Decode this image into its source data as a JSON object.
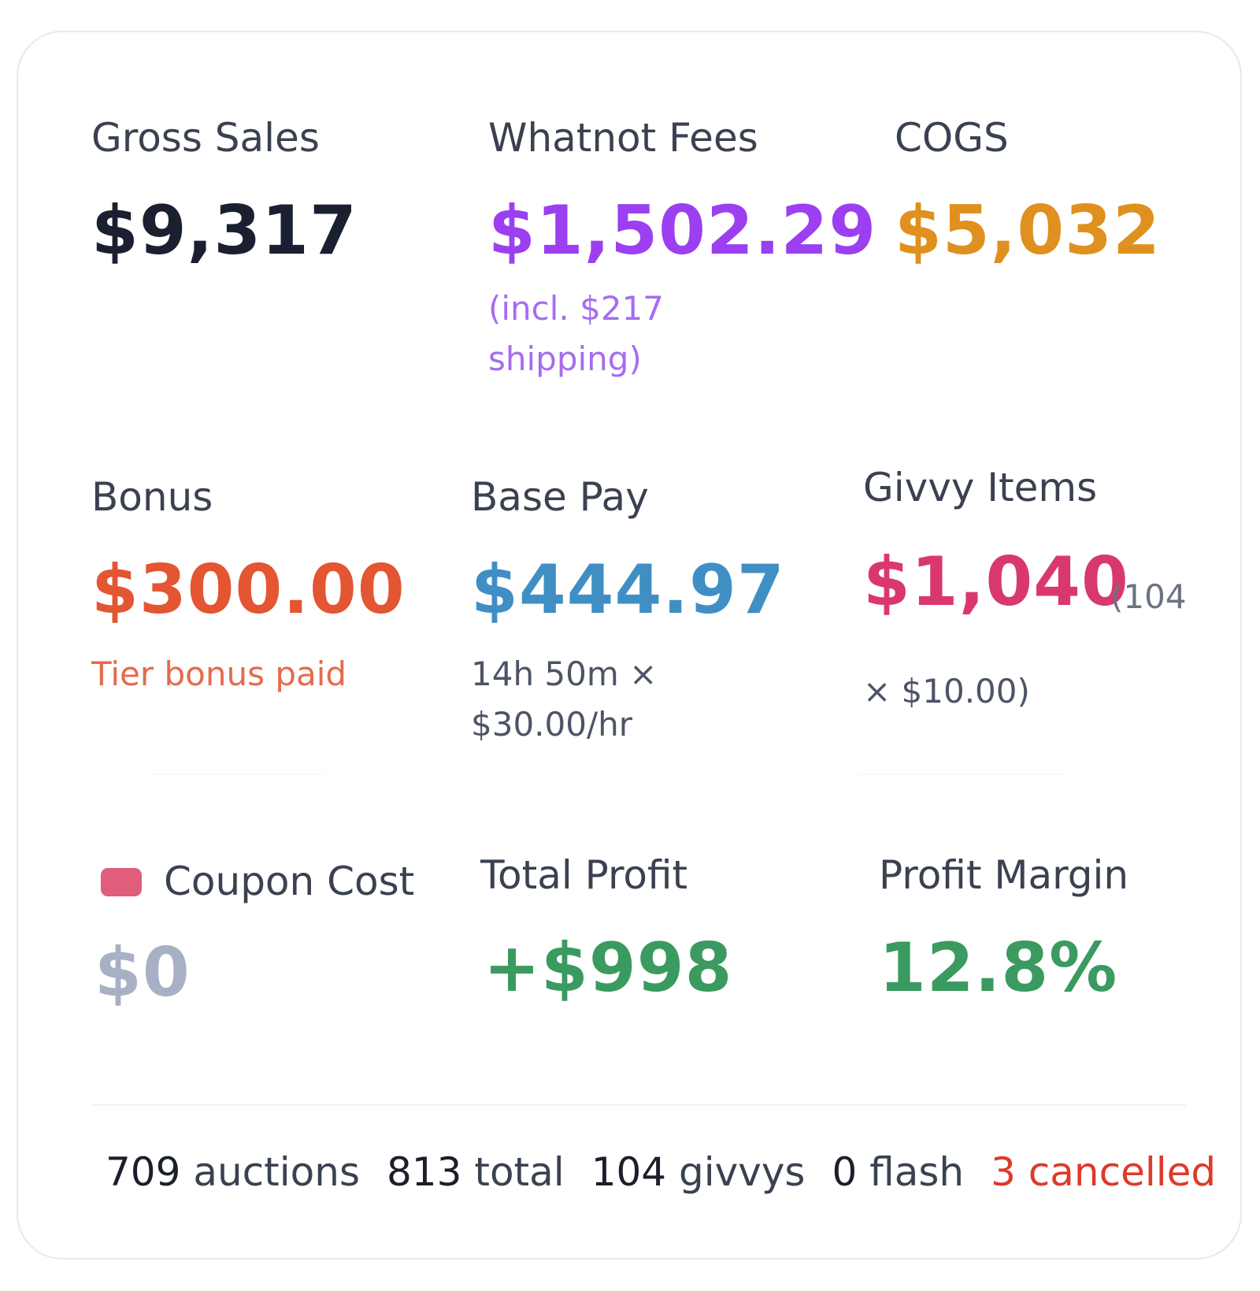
{
  "colors": {
    "gross": "#1b2030",
    "fees": "#9b3ff0",
    "cogs": "#e0901e",
    "bonus": "#e45532",
    "base_pay": "#3f8fc4",
    "givvy": "#d9386f",
    "coupon": "#a7b0c4",
    "profit": "#3a9a5f",
    "cancelled": "#dd3a2a"
  },
  "metrics": {
    "gross_sales": {
      "label": "Gross Sales",
      "value": "$9,317"
    },
    "whatnot_fees": {
      "label": "Whatnot Fees",
      "value": "$1,502.29",
      "note_line1": "(incl. $217",
      "note_line2": "shipping)"
    },
    "cogs": {
      "label": "COGS",
      "value": "$5,032"
    },
    "bonus": {
      "label": "Bonus",
      "value": "$300.00",
      "note": "Tier bonus paid"
    },
    "base_pay": {
      "label": "Base Pay",
      "value": "$444.97",
      "note_line1": "14h 50m ×",
      "note_line2": "$30.00/hr"
    },
    "givvy_items": {
      "label": "Givvy Items",
      "value": "$1,040",
      "note_inline": "(104",
      "note_line2": "× $10.00)"
    },
    "coupon_cost": {
      "label": "Coupon Cost",
      "value": "$0",
      "swatch_icon": "coupon-swatch"
    },
    "total_profit": {
      "label": "Total Profit",
      "value": "+$998"
    },
    "profit_margin": {
      "label": "Profit Margin",
      "value": "12.8%"
    }
  },
  "footer": {
    "auctions": {
      "count": "709",
      "label": "auctions"
    },
    "total": {
      "count": "813",
      "label": "total"
    },
    "givvys": {
      "count": "104",
      "label": "givvys"
    },
    "flash": {
      "count": "0",
      "label": "flash"
    },
    "cancelled": {
      "count": "3",
      "label": "cancelled"
    }
  }
}
